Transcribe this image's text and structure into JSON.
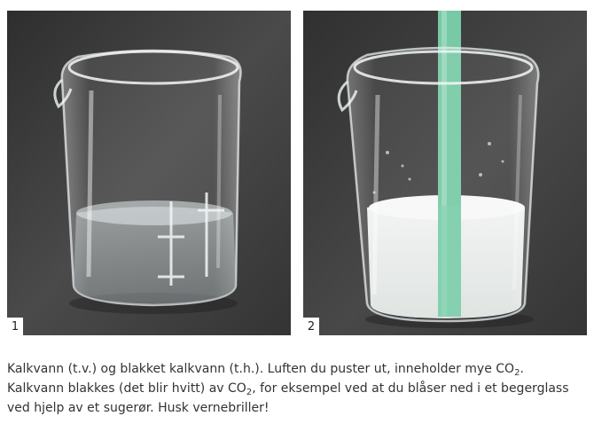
{
  "figure": {
    "photo_1": {
      "number": "1",
      "content": "Clear limewater in glass beaker"
    },
    "photo_2": {
      "number": "2",
      "content": "Cloudy white limewater in glass beaker with green straw"
    }
  },
  "caption": {
    "line1_text": "Kalkvann (t.v.) og blakket kalkvann (t.h.). Luften du puster ut, inneholder mye CO",
    "line1_sub": "2",
    "line1_end": ".",
    "line2_text": "Kalkvann blakkes (det blir hvitt) av CO",
    "line2_sub": "2",
    "line2_end": ", for eksempel ved at du blåser ned i et begerglass",
    "line3_text": "ved hjelp av et sugerør. Husk vernebriller!"
  },
  "colors": {
    "background_photo": "#3b3b3b",
    "straw": "#78c9a6",
    "milky_liquid": "#e9ecea"
  }
}
